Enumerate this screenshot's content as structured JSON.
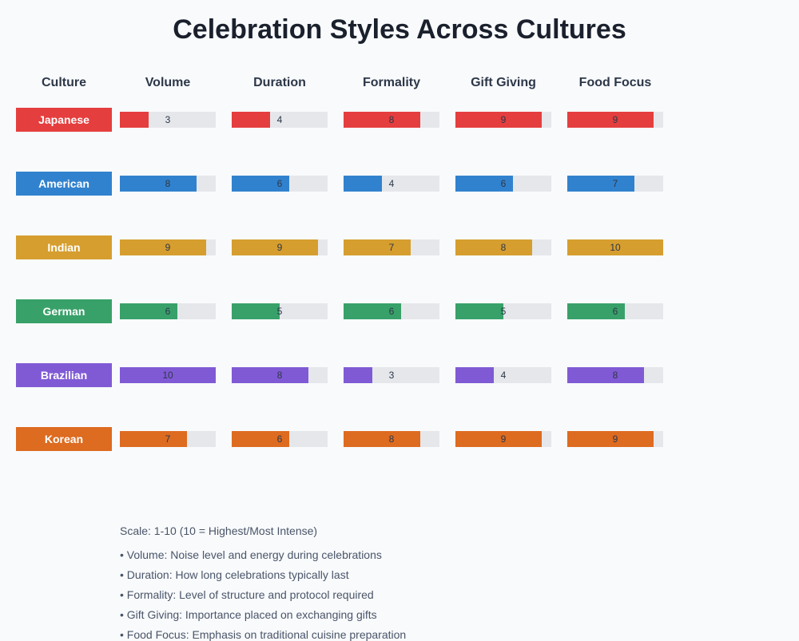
{
  "title": "Celebration Styles Across Cultures",
  "headers": [
    "Culture",
    "Volume",
    "Duration",
    "Formality",
    "Gift Giving",
    "Food Focus"
  ],
  "rows": [
    {
      "culture": "Japanese",
      "color": "#E53E3E",
      "values": [
        3,
        4,
        8,
        9,
        9
      ]
    },
    {
      "culture": "American",
      "color": "#3182CE",
      "values": [
        8,
        6,
        4,
        6,
        7
      ]
    },
    {
      "culture": "Indian",
      "color": "#D69E2E",
      "values": [
        9,
        9,
        7,
        8,
        10
      ]
    },
    {
      "culture": "German",
      "color": "#38A169",
      "values": [
        6,
        5,
        6,
        5,
        6
      ]
    },
    {
      "culture": "Brazilian",
      "color": "#805AD5",
      "values": [
        10,
        8,
        3,
        4,
        8
      ]
    },
    {
      "culture": "Korean",
      "color": "#DD6B20",
      "values": [
        7,
        6,
        8,
        9,
        9
      ]
    }
  ],
  "scale_note": "Scale: 1-10 (10 = Highest/Most Intense)",
  "legend": [
    "• Volume: Noise level and energy during celebrations",
    "• Duration: How long celebrations typically last",
    "• Formality: Level of structure and protocol required",
    "• Gift Giving: Importance placed on exchanging gifts",
    "• Food Focus: Emphasis on traditional cuisine preparation"
  ],
  "chart_data": {
    "type": "bar",
    "title": "Celebration Styles Across Cultures",
    "categories": [
      "Volume",
      "Duration",
      "Formality",
      "Gift Giving",
      "Food Focus"
    ],
    "series": [
      {
        "name": "Japanese",
        "values": [
          3,
          4,
          8,
          9,
          9
        ]
      },
      {
        "name": "American",
        "values": [
          8,
          6,
          4,
          6,
          7
        ]
      },
      {
        "name": "Indian",
        "values": [
          9,
          9,
          7,
          8,
          10
        ]
      },
      {
        "name": "German",
        "values": [
          6,
          5,
          6,
          5,
          6
        ]
      },
      {
        "name": "Brazilian",
        "values": [
          10,
          8,
          3,
          4,
          8
        ]
      },
      {
        "name": "Korean",
        "values": [
          7,
          6,
          8,
          9,
          9
        ]
      }
    ],
    "xlabel": "",
    "ylabel": "",
    "ylim": [
      0,
      10
    ],
    "note": "Scale: 1-10 (10 = Highest/Most Intense)"
  }
}
